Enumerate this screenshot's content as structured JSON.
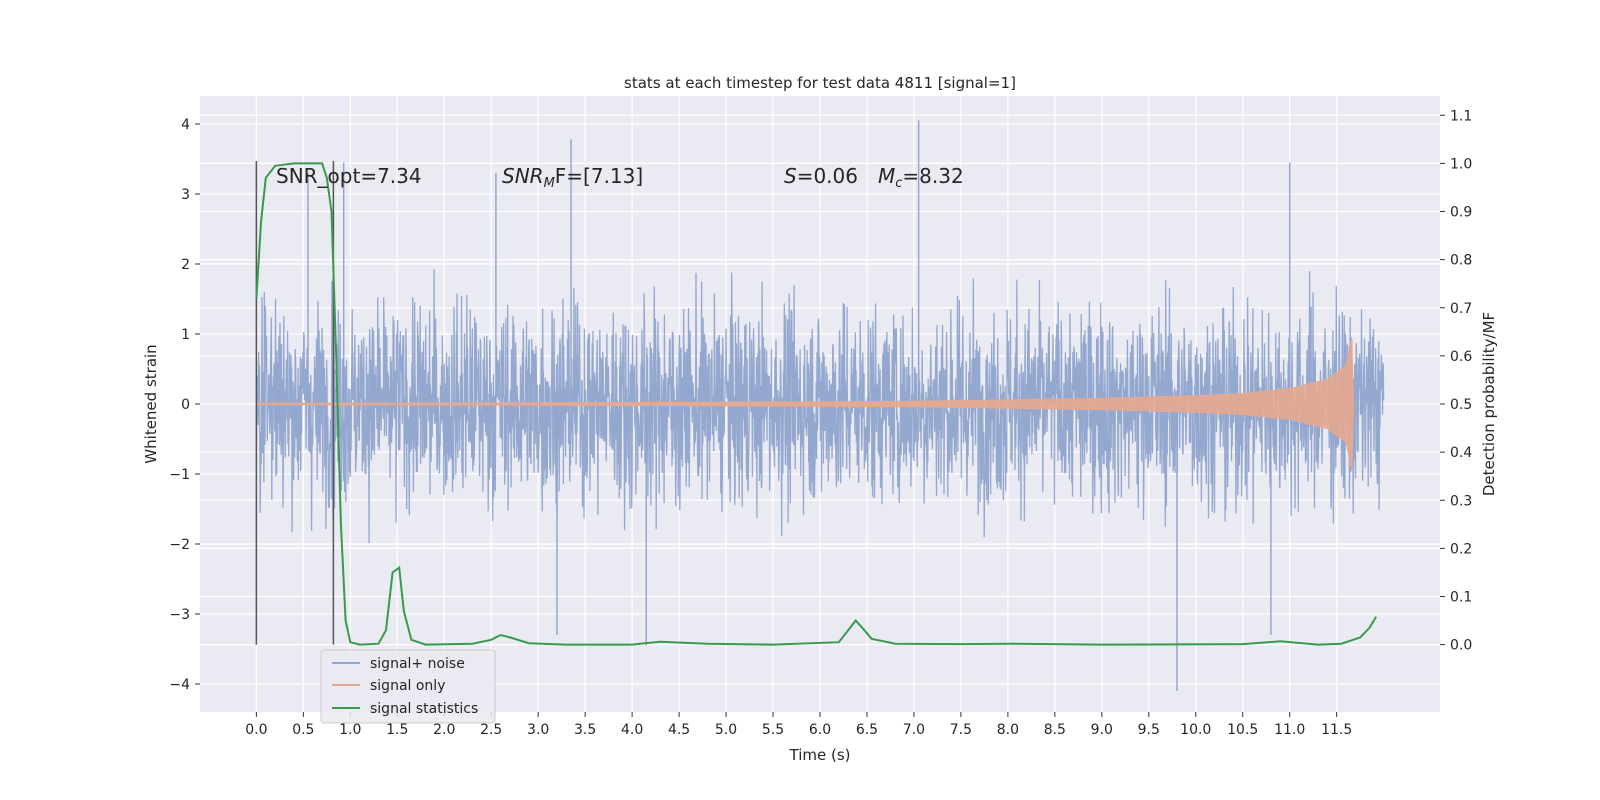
{
  "chart_data": {
    "type": "line",
    "title": "stats at each timestep for test data 4811 [signal=1]",
    "xlabel": "Time (s)",
    "ylabel": "Whitened strain",
    "ylabel_right": "Detection probability/MF",
    "xlim": [
      -0.6,
      12.6
    ],
    "ylim": [
      -4.4,
      4.4
    ],
    "ylim_right": [
      -0.14,
      1.14
    ],
    "x_ticks": [
      "0.0",
      "0.5",
      "1.0",
      "1.5",
      "2.0",
      "2.5",
      "3.0",
      "3.5",
      "4.0",
      "4.5",
      "5.0",
      "5.5",
      "6.0",
      "6.5",
      "7.0",
      "7.5",
      "8.0",
      "8.5",
      "9.0",
      "9.5",
      "10.0",
      "10.5",
      "11.0",
      "11.5"
    ],
    "y_ticks_left": [
      "4",
      "3",
      "2",
      "1",
      "0",
      "−1",
      "−2",
      "−3",
      "−4"
    ],
    "y_ticks_right": [
      "1.1",
      "1.0",
      "0.9",
      "0.8",
      "0.7",
      "0.6",
      "0.5",
      "0.4",
      "0.3",
      "0.2",
      "0.1",
      "0.0"
    ],
    "grid": true,
    "legend_position": "lower-left",
    "annotations": {
      "snr_opt": "SNR_opt=7.34",
      "snr_mf_base": "SNR",
      "snr_mf_sub": "M",
      "snr_mf_rest": "F=[7.13]",
      "s_var": "S",
      "s_val": "=0.06",
      "mc_var": "M",
      "mc_sub": "c",
      "mc_val": "=8.32"
    },
    "vertical_lines_x": [
      0.0,
      0.82
    ],
    "series": [
      {
        "name": "signal+ noise",
        "color": "#8fa3cc",
        "x_range": [
          0.0,
          12.0
        ],
        "envelope_typical": 1.8,
        "extremes": [
          {
            "x": 0.55,
            "y": 3.3
          },
          {
            "x": 0.93,
            "y": 3.45
          },
          {
            "x": 2.55,
            "y": 3.3
          },
          {
            "x": 3.35,
            "y": 3.78
          },
          {
            "x": 7.05,
            "y": 4.05
          },
          {
            "x": 11.0,
            "y": 3.45
          },
          {
            "x": 3.2,
            "y": -3.3
          },
          {
            "x": 4.15,
            "y": -3.45
          },
          {
            "x": 9.8,
            "y": -4.1
          },
          {
            "x": 10.8,
            "y": -3.3
          }
        ]
      },
      {
        "name": "signal only",
        "color": "#e5a98f",
        "points": [
          {
            "x": 0.0,
            "y": 0.01
          },
          {
            "x": 4.0,
            "y": 0.02
          },
          {
            "x": 7.0,
            "y": 0.04
          },
          {
            "x": 8.0,
            "y": 0.06
          },
          {
            "x": 9.0,
            "y": 0.08
          },
          {
            "x": 10.0,
            "y": 0.12
          },
          {
            "x": 10.5,
            "y": 0.15
          },
          {
            "x": 11.0,
            "y": 0.22
          },
          {
            "x": 11.4,
            "y": 0.35
          },
          {
            "x": 11.6,
            "y": 0.55
          },
          {
            "x": 11.66,
            "y": 0.95
          },
          {
            "x": 11.68,
            "y": 0.0
          }
        ]
      },
      {
        "name": "signal statistics",
        "color": "#3a9a4c",
        "points": [
          {
            "x": 0.0,
            "y": 0.72
          },
          {
            "x": 0.05,
            "y": 0.88
          },
          {
            "x": 0.1,
            "y": 0.97
          },
          {
            "x": 0.2,
            "y": 0.995
          },
          {
            "x": 0.4,
            "y": 1.0
          },
          {
            "x": 0.7,
            "y": 1.0
          },
          {
            "x": 0.75,
            "y": 0.97
          },
          {
            "x": 0.8,
            "y": 0.9
          },
          {
            "x": 0.85,
            "y": 0.6
          },
          {
            "x": 0.9,
            "y": 0.25
          },
          {
            "x": 0.95,
            "y": 0.05
          },
          {
            "x": 1.0,
            "y": 0.005
          },
          {
            "x": 1.1,
            "y": 0.0
          },
          {
            "x": 1.3,
            "y": 0.002
          },
          {
            "x": 1.38,
            "y": 0.03
          },
          {
            "x": 1.45,
            "y": 0.15
          },
          {
            "x": 1.52,
            "y": 0.16
          },
          {
            "x": 1.57,
            "y": 0.07
          },
          {
            "x": 1.65,
            "y": 0.01
          },
          {
            "x": 1.8,
            "y": 0.0
          },
          {
            "x": 2.3,
            "y": 0.002
          },
          {
            "x": 2.5,
            "y": 0.01
          },
          {
            "x": 2.6,
            "y": 0.02
          },
          {
            "x": 2.7,
            "y": 0.015
          },
          {
            "x": 2.9,
            "y": 0.003
          },
          {
            "x": 3.3,
            "y": 0.0
          },
          {
            "x": 4.0,
            "y": 0.0
          },
          {
            "x": 4.3,
            "y": 0.006
          },
          {
            "x": 4.8,
            "y": 0.002
          },
          {
            "x": 5.5,
            "y": 0.0
          },
          {
            "x": 6.2,
            "y": 0.005
          },
          {
            "x": 6.3,
            "y": 0.03
          },
          {
            "x": 6.38,
            "y": 0.05
          },
          {
            "x": 6.45,
            "y": 0.035
          },
          {
            "x": 6.55,
            "y": 0.012
          },
          {
            "x": 6.8,
            "y": 0.002
          },
          {
            "x": 7.5,
            "y": 0.001
          },
          {
            "x": 8.0,
            "y": 0.002
          },
          {
            "x": 9.0,
            "y": 0.0
          },
          {
            "x": 10.5,
            "y": 0.001
          },
          {
            "x": 10.9,
            "y": 0.007
          },
          {
            "x": 11.3,
            "y": 0.0
          },
          {
            "x": 11.55,
            "y": 0.002
          },
          {
            "x": 11.75,
            "y": 0.015
          },
          {
            "x": 11.85,
            "y": 0.035
          },
          {
            "x": 11.92,
            "y": 0.058
          }
        ]
      }
    ]
  }
}
